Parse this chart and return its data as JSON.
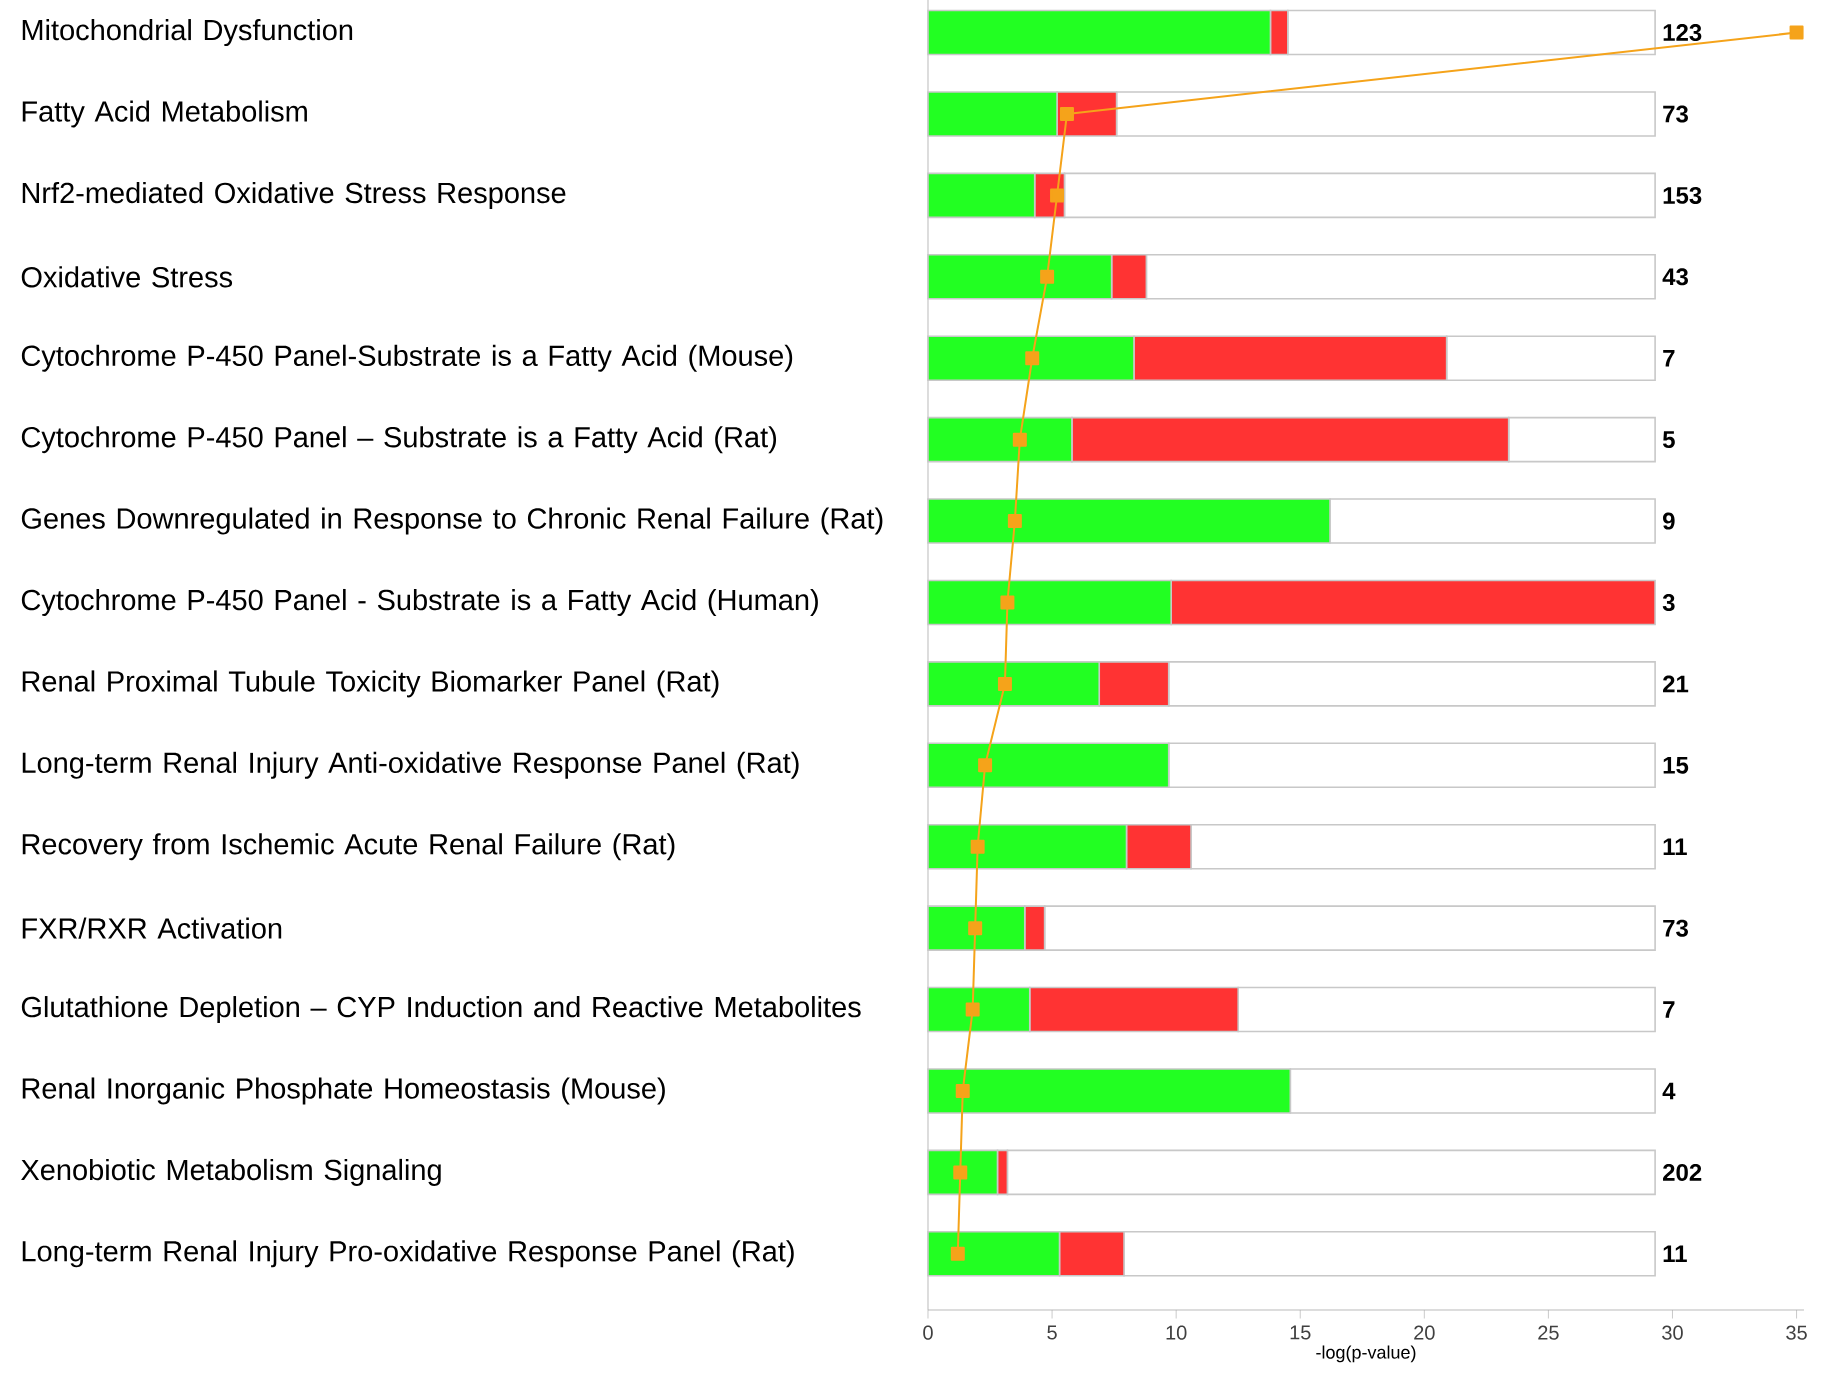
{
  "chart_data": {
    "type": "bar",
    "orientation": "horizontal",
    "stacked": true,
    "xlabel": "-log(p-value)",
    "marker": "square",
    "categories": [
      "Mitochondrial Dysfunction",
      "Fatty Acid Metabolism",
      "Nrf2-mediated Oxidative Stress Response",
      "Oxidative Stress",
      "Cytochrome P-450 Panel-Substrate is a Fatty Acid (Mouse)",
      "Cytochrome P-450 Panel – Substrate is a Fatty Acid (Rat)",
      "Genes Downregulated in Response to Chronic Renal Failure (Rat)",
      "Cytochrome P-450 Panel - Substrate is a Fatty Acid (Human)",
      "Renal Proximal Tubule Toxicity Biomarker Panel (Rat)",
      "Long-term Renal Injury Anti-oxidative Response Panel (Rat)",
      "Recovery from Ischemic Acute Renal Failure (Rat)",
      "FXR/RXR Activation",
      "Glutathione Depletion – CYP Induction and Reactive Metabolites",
      "Renal Inorganic Phosphate Homeostasis (Mouse)",
      "Xenobiotic Metabolism Signaling",
      "Long-term Renal Injury Pro-oxidative Response Panel (Rat)"
    ],
    "xlim": [
      0,
      35.3
    ],
    "xticks": [
      0,
      5,
      10,
      15,
      20,
      25,
      30,
      35
    ],
    "series": [
      {
        "color": "#22ff22",
        "values": [
          13.8,
          5.2,
          4.3,
          7.4,
          8.3,
          5.8,
          16.2,
          9.8,
          6.9,
          9.7,
          8.0,
          3.9,
          4.1,
          14.6,
          2.8,
          5.3
        ]
      },
      {
        "color": "#ff3333",
        "values": [
          0.7,
          2.4,
          1.2,
          1.4,
          12.6,
          17.6,
          0,
          19.5,
          2.8,
          0,
          2.6,
          0.8,
          8.4,
          0,
          0.4,
          2.6
        ]
      },
      {
        "color": "#ffffff",
        "values": [
          14.8,
          21.7,
          23.8,
          20.5,
          8.4,
          5.9,
          13.1,
          0,
          19.6,
          19.6,
          18.7,
          24.6,
          16.8,
          14.7,
          26.1,
          21.4
        ]
      },
      {
        "type": "line",
        "color": "#f5a31a",
        "values": [
          35,
          5.6,
          5.2,
          4.8,
          4.2,
          3.7,
          3.5,
          3.2,
          3.1,
          2.3,
          2.0,
          1.9,
          1.8,
          1.4,
          1.3,
          1.2
        ]
      }
    ],
    "annotations": [
      "123",
      "73",
      "153",
      "43",
      "7",
      "5",
      "9",
      "3",
      "21",
      "15",
      "11",
      "73",
      "7",
      "4",
      "202",
      "11"
    ]
  }
}
